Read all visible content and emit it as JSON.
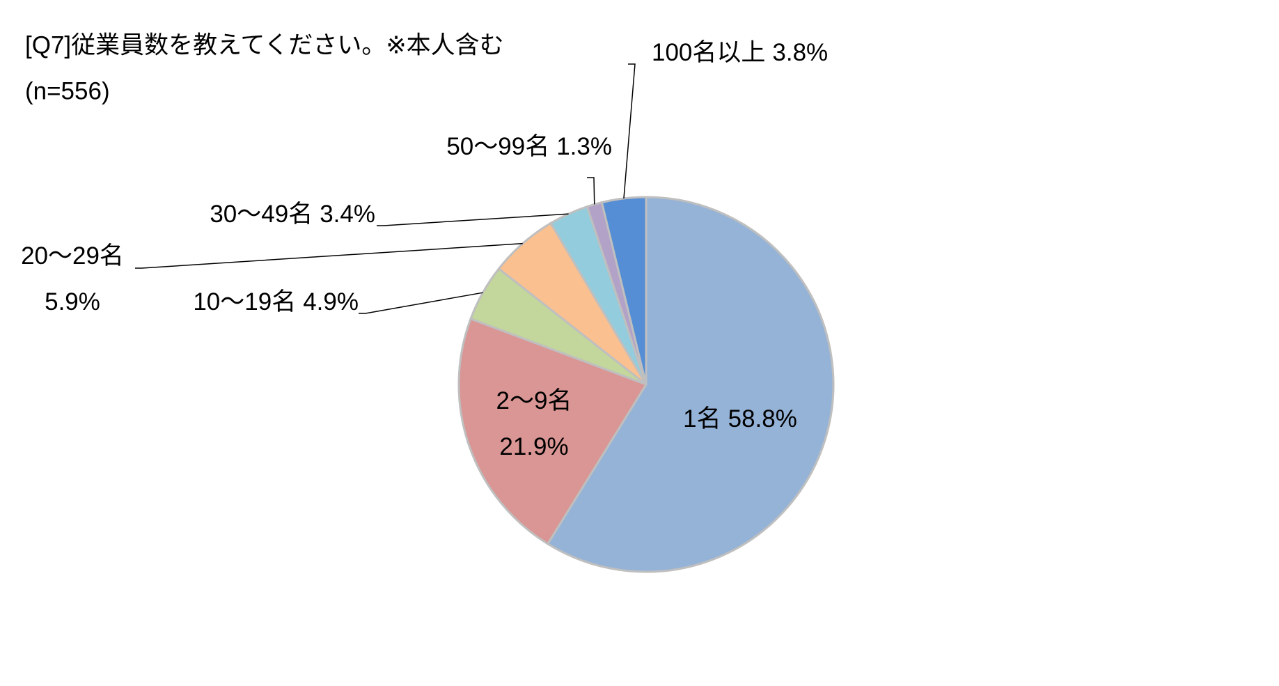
{
  "chart_data": {
    "type": "pie",
    "title": "[Q7]従業員数を教えてください。※本人含む",
    "subtitle": "(n=556)",
    "categories": [
      "1名",
      "2〜9名",
      "10〜19名",
      "20〜29名",
      "30〜49名",
      "50〜99名",
      "100名以上"
    ],
    "values": [
      58.8,
      21.9,
      4.9,
      5.9,
      3.4,
      1.3,
      3.8
    ],
    "value_labels": [
      "58.8%",
      "21.9%",
      "4.9%",
      "5.9%",
      "3.4%",
      "1.3%",
      "3.8%"
    ],
    "colors": [
      "#95b3d7",
      "#d99694",
      "#c3d69b",
      "#fac090",
      "#93cddd",
      "#b3a2c7",
      "#558ed5"
    ]
  }
}
